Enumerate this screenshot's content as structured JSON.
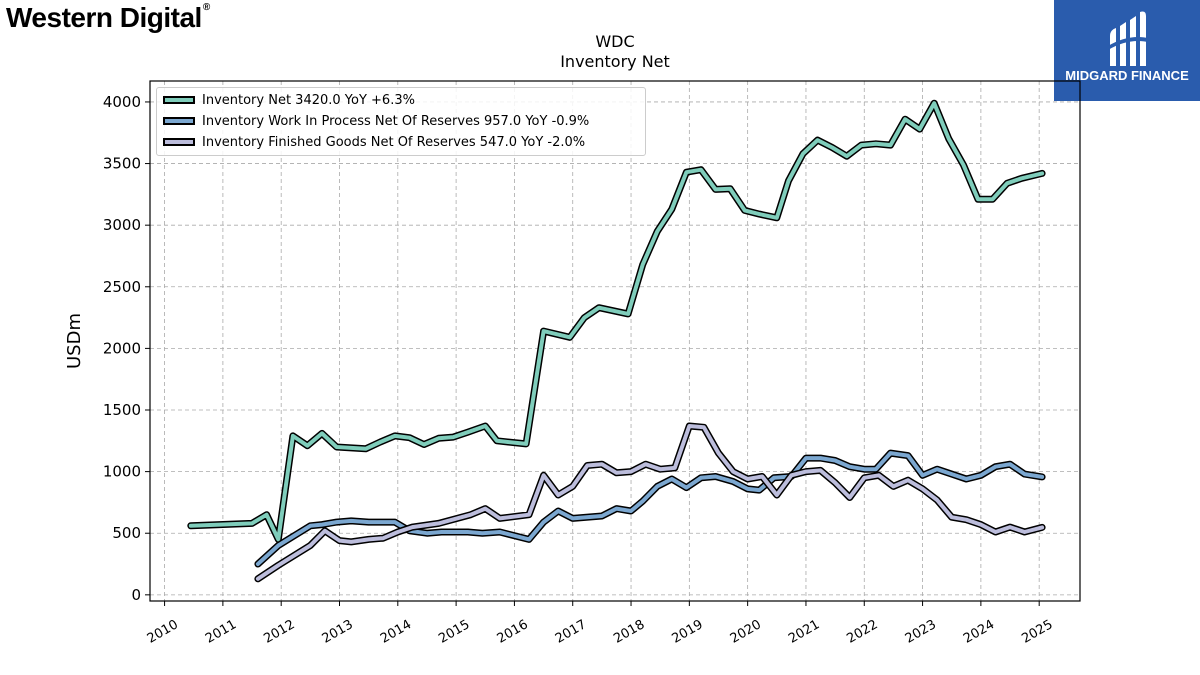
{
  "header": {
    "company_logo": "Western Digital",
    "company_logo_mark": "®",
    "sponsor_name": "MIDGARD FINANCE",
    "sponsor_color": "#2a5cad"
  },
  "chart_data": {
    "type": "line",
    "title": "WDC",
    "subtitle": "Inventory Net",
    "xlabel": "",
    "ylabel": "USDm",
    "xlim": [
      2009.75,
      2025.7
    ],
    "ylim": [
      -50,
      4170
    ],
    "x_ticks": [
      2010,
      2011,
      2012,
      2013,
      2014,
      2015,
      2016,
      2017,
      2018,
      2019,
      2020,
      2021,
      2022,
      2023,
      2024,
      2025
    ],
    "x_tick_labels": [
      "2010",
      "2011",
      "2012",
      "2013",
      "2014",
      "2015",
      "2016",
      "2017",
      "2018",
      "2019",
      "2020",
      "2021",
      "2022",
      "2023",
      "2024",
      "2025"
    ],
    "y_ticks": [
      0,
      500,
      1000,
      1500,
      2000,
      2500,
      3000,
      3500,
      4000
    ],
    "y_tick_labels": [
      "0",
      "500",
      "1000",
      "1500",
      "2000",
      "2500",
      "3000",
      "3500",
      "4000"
    ],
    "grid": true,
    "legend_position": "top-left",
    "series": [
      {
        "name": "Inventory Net",
        "legend_label": "Inventory Net  3420.0 YoY +6.3%",
        "color": "#7fcdbb",
        "x": [
          2010.45,
          2011.5,
          2011.75,
          2011.95,
          2012.2,
          2012.45,
          2012.7,
          2012.95,
          2013.45,
          2013.7,
          2013.95,
          2014.2,
          2014.45,
          2014.7,
          2014.95,
          2015.2,
          2015.5,
          2015.7,
          2016.2,
          2016.5,
          2016.95,
          2017.2,
          2017.45,
          2017.95,
          2018.2,
          2018.45,
          2018.7,
          2018.95,
          2019.2,
          2019.45,
          2019.7,
          2019.95,
          2020.2,
          2020.5,
          2020.7,
          2020.95,
          2021.2,
          2021.45,
          2021.7,
          2021.95,
          2022.2,
          2022.45,
          2022.7,
          2022.95,
          2023.2,
          2023.45,
          2023.7,
          2023.95,
          2024.2,
          2024.45,
          2024.7,
          2025.05
        ],
        "y": [
          560,
          580,
          650,
          450,
          1290,
          1210,
          1310,
          1200,
          1185,
          1240,
          1290,
          1275,
          1220,
          1270,
          1280,
          1320,
          1370,
          1250,
          1225,
          2140,
          2090,
          2250,
          2330,
          2280,
          2680,
          2950,
          3130,
          3430,
          3450,
          3290,
          3295,
          3120,
          3090,
          3060,
          3360,
          3580,
          3690,
          3630,
          3560,
          3650,
          3660,
          3650,
          3860,
          3780,
          3990,
          3700,
          3490,
          3210,
          3210,
          3340,
          3380,
          3420
        ]
      },
      {
        "name": "Inventory Work In Process Net Of Reserves",
        "legend_label": "Inventory Work In Process Net Of Reserves  957.0 YoY -0.9%",
        "color": "#7ba7d0",
        "x": [
          2011.6,
          2011.95,
          2012.5,
          2012.7,
          2012.95,
          2013.2,
          2013.5,
          2013.95,
          2014.2,
          2014.5,
          2014.75,
          2015.2,
          2015.45,
          2015.75,
          2016.25,
          2016.5,
          2016.75,
          2017.0,
          2017.5,
          2017.75,
          2018.0,
          2018.2,
          2018.45,
          2018.7,
          2018.95,
          2019.2,
          2019.45,
          2019.75,
          2020.0,
          2020.2,
          2020.45,
          2020.75,
          2021.0,
          2021.25,
          2021.5,
          2021.75,
          2022.0,
          2022.2,
          2022.45,
          2022.75,
          2023.0,
          2023.25,
          2023.5,
          2023.75,
          2024.0,
          2024.25,
          2024.5,
          2024.75,
          2025.05
        ],
        "y": [
          250,
          400,
          560,
          570,
          590,
          600,
          590,
          590,
          520,
          500,
          510,
          510,
          500,
          510,
          450,
          590,
          680,
          620,
          640,
          700,
          680,
          760,
          880,
          940,
          870,
          950,
          960,
          920,
          860,
          850,
          950,
          960,
          1110,
          1110,
          1090,
          1040,
          1020,
          1020,
          1150,
          1130,
          970,
          1020,
          980,
          940,
          970,
          1040,
          1060,
          980,
          957
        ]
      },
      {
        "name": "Inventory Finished Goods Net Of Reserves",
        "legend_label": "Inventory Finished Goods Net Of Reserves  547.0 YoY -2.0%",
        "color": "#bcbddc",
        "x": [
          2011.6,
          2011.95,
          2012.5,
          2012.75,
          2013.0,
          2013.2,
          2013.5,
          2013.75,
          2014.0,
          2014.25,
          2014.7,
          2015.25,
          2015.5,
          2015.75,
          2016.25,
          2016.5,
          2016.75,
          2017.0,
          2017.25,
          2017.5,
          2017.75,
          2018.0,
          2018.25,
          2018.5,
          2018.75,
          2019.0,
          2019.25,
          2019.5,
          2019.75,
          2020.0,
          2020.25,
          2020.5,
          2020.75,
          2021.0,
          2021.25,
          2021.5,
          2021.75,
          2022.0,
          2022.25,
          2022.5,
          2022.75,
          2023.0,
          2023.25,
          2023.5,
          2023.75,
          2024.0,
          2024.25,
          2024.5,
          2024.75,
          2025.05
        ],
        "y": [
          130,
          240,
          400,
          520,
          440,
          430,
          450,
          460,
          510,
          550,
          580,
          650,
          700,
          620,
          650,
          970,
          810,
          880,
          1050,
          1060,
          990,
          1000,
          1060,
          1020,
          1030,
          1370,
          1360,
          1150,
          1000,
          940,
          960,
          810,
          970,
          1000,
          1010,
          910,
          790,
          950,
          970,
          880,
          930,
          860,
          770,
          630,
          610,
          570,
          510,
          550,
          510,
          547
        ]
      }
    ]
  }
}
